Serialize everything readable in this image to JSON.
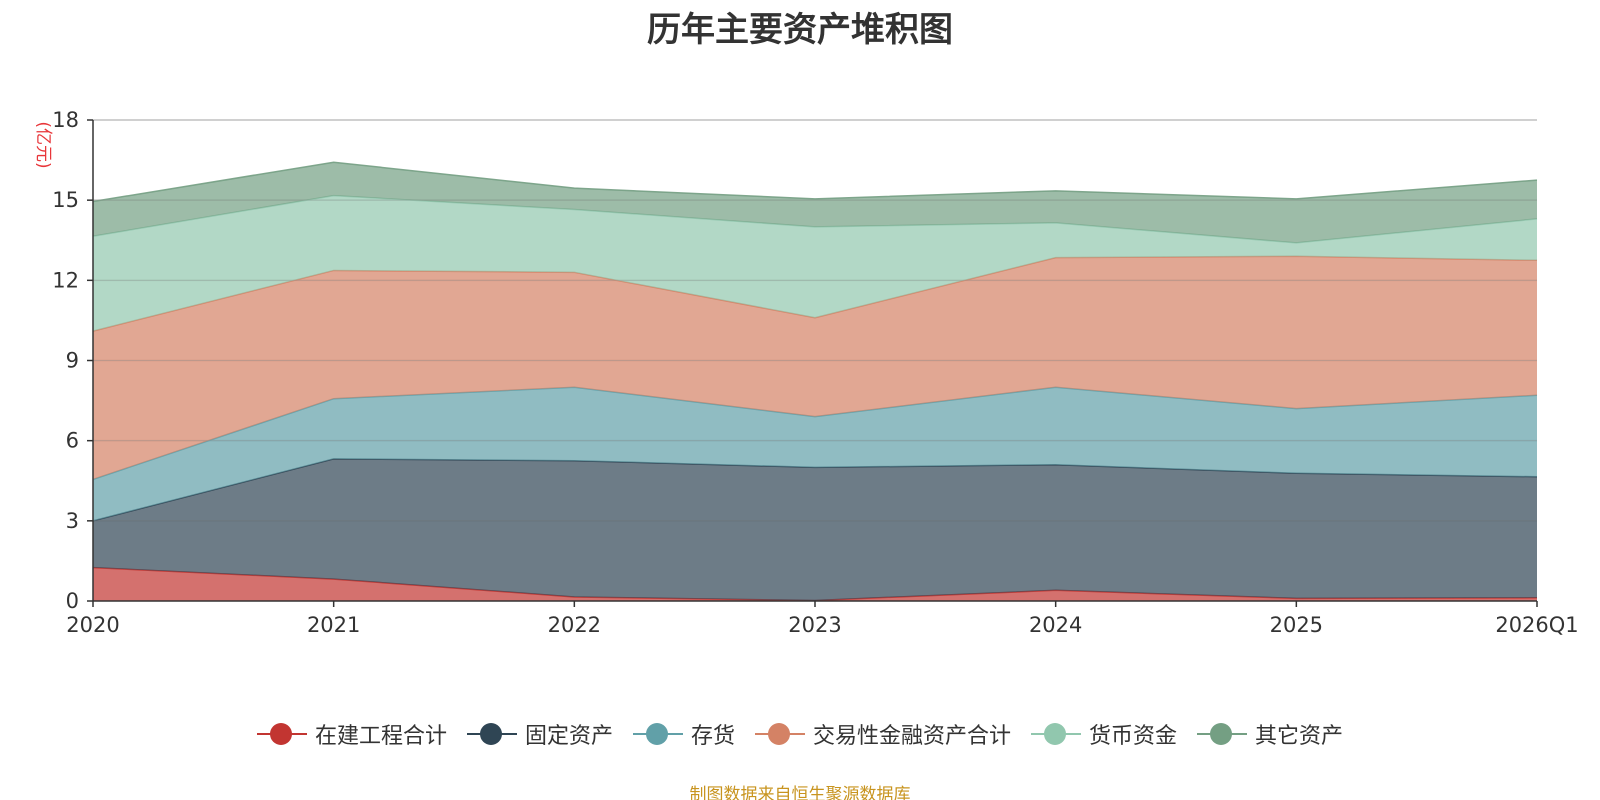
{
  "chart_data": {
    "type": "area",
    "stacked": true,
    "title": "历年主要资产堆积图",
    "ylabel": "(亿元)",
    "xlabel": "",
    "categories": [
      "2020",
      "2021",
      "2022",
      "2023",
      "2024",
      "2025",
      "2026Q1"
    ],
    "ylim": [
      0,
      18
    ],
    "yticks": [
      0,
      3,
      6,
      9,
      12,
      15,
      18
    ],
    "series": [
      {
        "name": "在建工程合计",
        "color": "#c23531",
        "values": [
          1.25,
          0.82,
          0.15,
          0.02,
          0.4,
          0.1,
          0.12
        ]
      },
      {
        "name": "固定资产",
        "color": "#2f4554",
        "values": [
          1.75,
          4.5,
          5.1,
          4.98,
          4.7,
          4.68,
          4.53
        ]
      },
      {
        "name": "存货",
        "color": "#61a0a8",
        "values": [
          1.55,
          2.25,
          2.75,
          1.9,
          2.9,
          2.42,
          3.05
        ]
      },
      {
        "name": "交易性金融资产合计",
        "color": "#d48265",
        "values": [
          5.55,
          4.8,
          4.3,
          3.7,
          4.85,
          5.7,
          5.05
        ]
      },
      {
        "name": "货币资金",
        "color": "#91c7ae",
        "values": [
          3.55,
          2.8,
          2.35,
          3.4,
          1.3,
          0.5,
          1.55
        ]
      },
      {
        "name": "其它资产",
        "color": "#749f83",
        "values": [
          1.3,
          1.25,
          0.8,
          1.05,
          1.2,
          1.65,
          1.45
        ]
      }
    ],
    "legend_position": "bottom",
    "grid": true
  },
  "source_note": "制图数据来自恒生聚源数据库"
}
